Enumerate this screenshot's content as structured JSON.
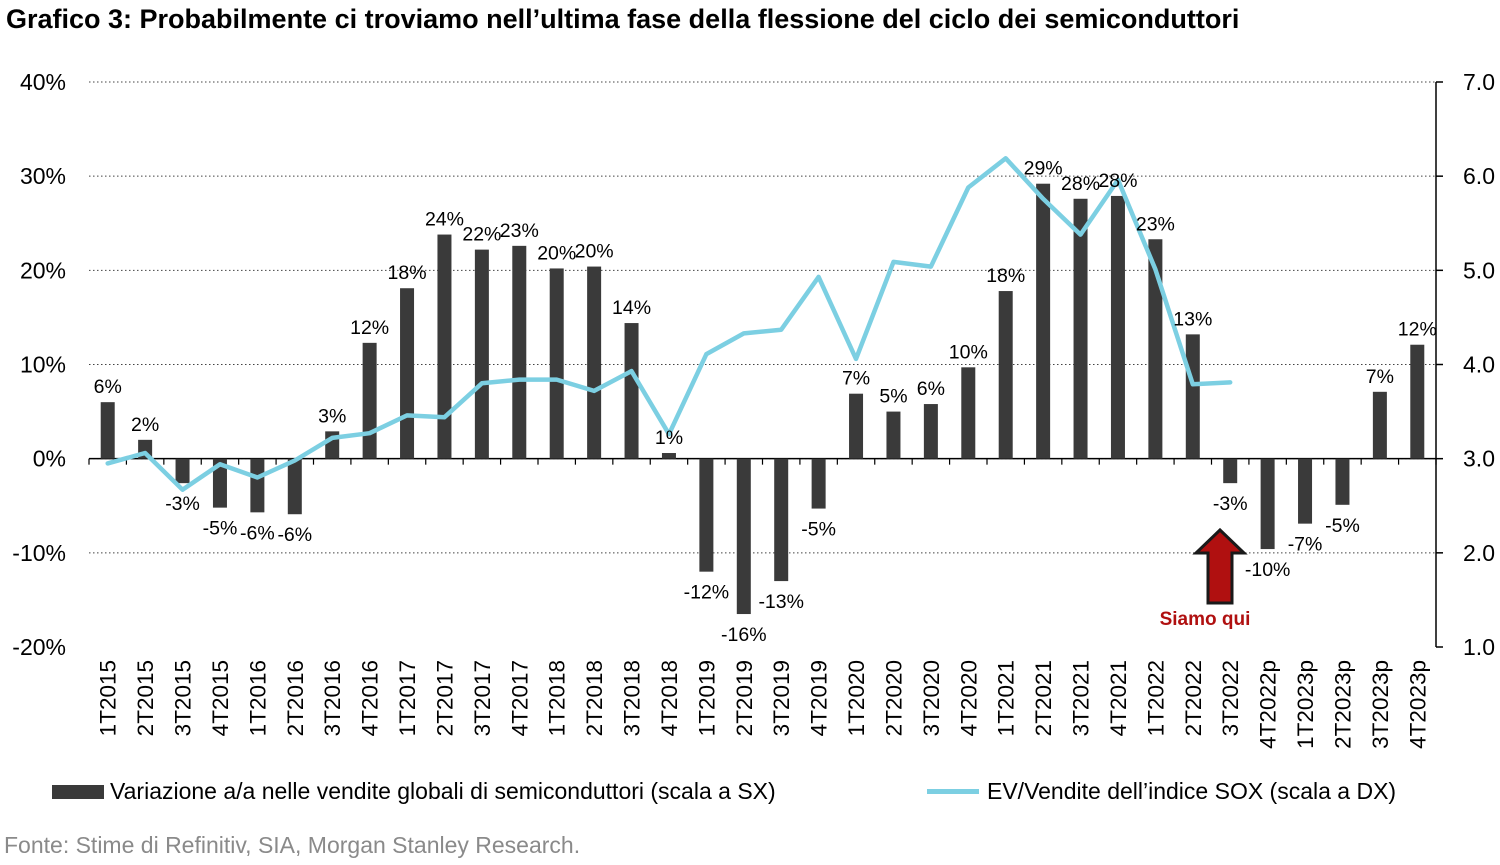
{
  "title": "Grafico 3: Probabilmente ci troviamo nell’ultima fase della flessione del ciclo dei semiconduttori",
  "legend": {
    "bars": "Variazione a/a nelle vendite globali di semiconduttori (scala a SX)",
    "line": "EV/Vendite dell’indice SOX (scala a DX)"
  },
  "annotation": "Siamo qui",
  "source": "Fonte: Stime di Refinitiv, SIA, Morgan Stanley Research.",
  "colors": {
    "bars": "#3a3a3a",
    "line": "#7ccfe2",
    "annotation": "#b01010"
  },
  "chart_data": {
    "type": "bar",
    "categories": [
      "1T2015",
      "2T2015",
      "3T2015",
      "4T2015",
      "1T2016",
      "2T2016",
      "3T2016",
      "4T2016",
      "1T2017",
      "2T2017",
      "3T2017",
      "4T2017",
      "1T2018",
      "2T2018",
      "3T2018",
      "4T2018",
      "1T2019",
      "2T2019",
      "3T2019",
      "4T2019",
      "1T2020",
      "2T2020",
      "3T2020",
      "4T2020",
      "1T2021",
      "2T2021",
      "3T2021",
      "4T2021",
      "1T2022",
      "2T2022",
      "3T2022",
      "4T2022p",
      "1T2023p",
      "2T2023p",
      "3T2023p",
      "4T2023p"
    ],
    "left_axis": {
      "ylim": [
        -20,
        40
      ],
      "ticks": [
        "-20%",
        "-10%",
        "0%",
        "10%",
        "20%",
        "30%",
        "40%"
      ],
      "tick_values": [
        -20,
        -10,
        0,
        10,
        20,
        30,
        40
      ]
    },
    "right_axis": {
      "ylim": [
        1.0,
        7.0
      ],
      "ticks": [
        "1.0",
        "2.0",
        "3.0",
        "4.0",
        "5.0",
        "6.0",
        "7.0"
      ],
      "tick_values": [
        1,
        2,
        3,
        4,
        5,
        6,
        7
      ]
    },
    "grid": "horizontal dotted",
    "series": [
      {
        "type": "bar",
        "axis": "left",
        "values": [
          6.0,
          2.0,
          -2.6,
          -5.2,
          -5.7,
          -5.9,
          2.9,
          12.3,
          18.1,
          23.8,
          22.2,
          22.6,
          20.2,
          20.4,
          14.4,
          0.6,
          -12.0,
          -16.5,
          -13.0,
          -5.3,
          6.9,
          5.0,
          5.8,
          9.7,
          17.8,
          29.2,
          27.6,
          27.9,
          23.3,
          13.2,
          -2.6,
          -9.6,
          -6.9,
          -4.9,
          7.1,
          12.1
        ],
        "labels": [
          "6%",
          "2%",
          "-3%",
          "-5%",
          "-6%",
          "-6%",
          "3%",
          "12%",
          "18%",
          "24%",
          "22%",
          "23%",
          "20%",
          "20%",
          "14%",
          "1%",
          "-12%",
          "-16%",
          "-13%",
          "-5%",
          "7%",
          "5%",
          "6%",
          "10%",
          "18%",
          "29%",
          "28%",
          "28%",
          "23%",
          "13%",
          "-3%",
          "-10%",
          "-7%",
          "-5%",
          "7%",
          "12%"
        ]
      },
      {
        "type": "line",
        "axis": "right",
        "values": [
          2.95,
          3.06,
          2.67,
          2.94,
          2.8,
          2.98,
          3.22,
          3.27,
          3.46,
          3.44,
          3.8,
          3.84,
          3.84,
          3.72,
          3.93,
          3.26,
          4.11,
          4.33,
          4.37,
          4.93,
          4.06,
          5.09,
          5.04,
          5.88,
          6.19,
          5.76,
          5.38,
          5.96,
          5.01,
          3.79,
          3.81,
          null,
          null,
          null,
          null,
          null
        ]
      }
    ]
  }
}
